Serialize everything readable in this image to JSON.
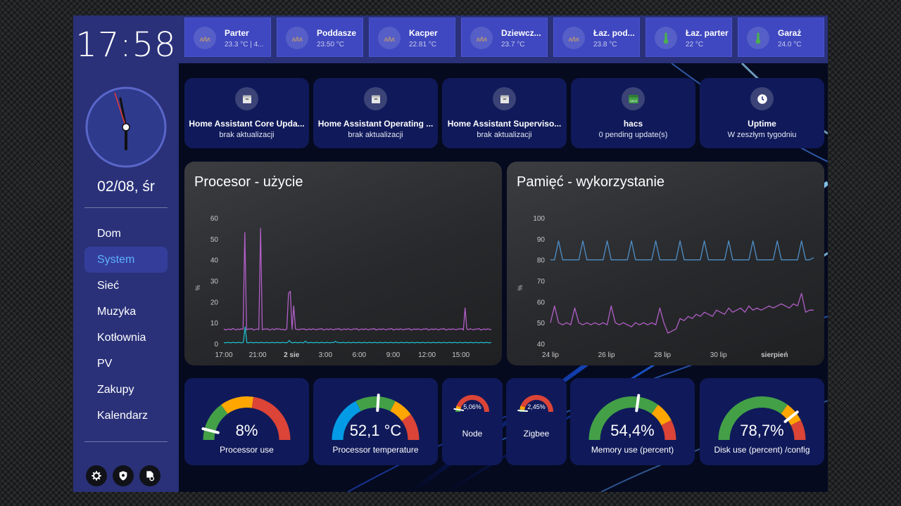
{
  "clock": {
    "time": "17:58",
    "date": "02/08, śr"
  },
  "nav": {
    "items": [
      {
        "label": "Dom",
        "active": false
      },
      {
        "label": "System",
        "active": true
      },
      {
        "label": "Sieć",
        "active": false
      },
      {
        "label": "Muzyka",
        "active": false
      },
      {
        "label": "Kotłownia",
        "active": false
      },
      {
        "label": "PV",
        "active": false
      },
      {
        "label": "Zakupy",
        "active": false
      },
      {
        "label": "Kalendarz",
        "active": false
      }
    ]
  },
  "tools": [
    {
      "icon": "gear-icon"
    },
    {
      "icon": "shield-icon"
    },
    {
      "icon": "file-settings-icon"
    }
  ],
  "rooms": [
    {
      "name": "Parter",
      "temp": "23.3 °C | 4...",
      "icon": "heating-icon"
    },
    {
      "name": "Poddasze",
      "temp": "23.50 °C",
      "icon": "heating-icon"
    },
    {
      "name": "Kacper",
      "temp": "22.81 °C",
      "icon": "heating-icon"
    },
    {
      "name": "Dziewcz...",
      "temp": "23.7 °C",
      "icon": "heating-icon"
    },
    {
      "name": "Łaz. pod...",
      "temp": "23.8 °C",
      "icon": "heating-icon"
    },
    {
      "name": "Łaz. parter",
      "temp": "22 °C",
      "icon": "thermometer-icon"
    },
    {
      "name": "Garaż",
      "temp": "24.0 °C",
      "icon": "thermometer-icon"
    }
  ],
  "updates": [
    {
      "title": "Home Assistant Core Upda...",
      "subtitle": "brak aktualizacji",
      "icon": "package-icon"
    },
    {
      "title": "Home Assistant Operating ...",
      "subtitle": "brak aktualizacji",
      "icon": "package-icon"
    },
    {
      "title": "Home Assistant Superviso...",
      "subtitle": "brak aktualizacji",
      "icon": "package-icon"
    },
    {
      "title": "hacs",
      "subtitle": "0 pending update(s)",
      "icon": "hacs-icon"
    },
    {
      "title": "Uptime",
      "subtitle": "W zeszłym tygodniu",
      "icon": "clock-icon"
    }
  ],
  "colors": {
    "sidebar": "#2a3179",
    "accent": "#5fb0ff",
    "card": "#101a5a",
    "gauge_green": "#43a047",
    "gauge_yellow": "#ffa600",
    "gauge_red": "#db4437",
    "gauge_blue": "#039be5",
    "cpu_series": "#b15fc8",
    "cpu_series_2": "#1fb8c8",
    "mem_series_1": "#4f8fc8",
    "mem_series_2": "#b15fc8"
  },
  "chart_data": [
    {
      "type": "line",
      "title": "Procesor - użycie",
      "ylabel": "%",
      "ylim": [
        0,
        60
      ],
      "yticks": [
        "0",
        "10",
        "20",
        "30",
        "40",
        "50",
        "60"
      ],
      "xticks": [
        "17:00",
        "21:00",
        "2 sie",
        "3:00",
        "6:00",
        "9:00",
        "12:00",
        "15:00"
      ],
      "grid": false,
      "series": [
        {
          "values": [
            7,
            6.5,
            6.8,
            7,
            6.6,
            7.2,
            6.9,
            6.5,
            7,
            6.7,
            7.1,
            6.8,
            53,
            6.6,
            7,
            6.9,
            7.2,
            6.5,
            6.8,
            7,
            6.7,
            55,
            6.6,
            7,
            6.9,
            7.1,
            6.5,
            6.8,
            7,
            6.6,
            7.2,
            6.9,
            7,
            6.7,
            6.8,
            6.5,
            7,
            24,
            25,
            6.8,
            18,
            7,
            6.8,
            6.6,
            7,
            6.9,
            7.1,
            6.5,
            6.8,
            7,
            6.7,
            7.1,
            6.8,
            6.6,
            7,
            6.9,
            7.2,
            6.5,
            6.8,
            7,
            6.7,
            7.1,
            6.8,
            6.6,
            7,
            6.9,
            7.2,
            6.5,
            6.8,
            7,
            6.7,
            7.1,
            6.8,
            6.6,
            7,
            6.9,
            7.2,
            6.5,
            6.8,
            7,
            6.7,
            7.1,
            6.8,
            6.6,
            7,
            6.9,
            7.2,
            6.5,
            6.8,
            7,
            6.7,
            7.1,
            6.8,
            6.6,
            7,
            6.9,
            7.2,
            6.5,
            6.8,
            7,
            6.7,
            7.1,
            6.8,
            6.6,
            7,
            6.9,
            7.2,
            6.5,
            6.8,
            7,
            6.7,
            7.1,
            6.8,
            6.6,
            7,
            6.9,
            7.2,
            6.5,
            6.8,
            7,
            6.7,
            7.1,
            6.8,
            6.6,
            7,
            6.9,
            7.2,
            6.5,
            6.8,
            7,
            6.7,
            7.1,
            6.8,
            6.6,
            7,
            6.9,
            7.2,
            6.5,
            17,
            7,
            6.7,
            7.1,
            6.8,
            6.6,
            7,
            6.9,
            7.2,
            6.5,
            6.8,
            7,
            6.7,
            7.1,
            6.8,
            6.6
          ]
        },
        {
          "values": [
            0.5,
            0.4,
            0.6,
            0.5,
            0.4,
            0.6,
            0.5,
            0.4,
            0.6,
            0.5,
            0.4,
            0.6,
            8,
            0.5,
            0.4,
            0.6,
            0.5,
            0.4,
            0.6,
            0.5,
            0.4,
            0.6,
            0.5,
            0.4,
            0.6,
            0.5,
            0.4,
            0.6,
            0.5,
            0.4,
            0.6,
            0.5,
            0.4,
            0.6,
            0.5,
            0.4,
            0.6,
            1.5,
            0.5,
            0.4,
            0.6,
            0.5,
            0.4,
            0.6,
            0.5,
            0.4,
            1.2,
            0.5,
            0.4,
            0.6,
            0.5,
            0.4,
            0.6,
            0.5,
            0.4,
            0.6,
            0.5,
            0.4,
            0.6,
            0.5,
            0.4,
            0.6,
            0.5,
            1.1,
            0.6,
            0.5,
            0.4,
            0.6,
            0.5,
            0.4,
            0.6,
            0.5,
            0.4,
            0.6,
            0.5,
            0.4,
            0.6,
            0.5,
            0.4,
            0.6,
            0.5,
            0.4,
            0.6,
            0.5,
            0.4,
            0.6,
            0.5,
            0.4,
            0.6,
            0.5,
            0.4,
            0.6,
            0.5,
            0.4,
            0.6,
            0.5,
            0.4,
            0.6,
            0.5,
            0.4,
            0.6,
            0.5,
            0.4,
            0.6,
            0.5,
            0.4,
            0.6,
            0.5,
            0.4,
            0.6,
            0.5,
            0.4,
            0.6,
            0.5,
            0.4,
            0.6,
            0.5,
            0.4,
            0.6,
            0.5,
            0.4,
            0.6,
            0.5,
            0.4,
            0.6,
            0.5,
            0.4,
            0.6,
            0.5,
            0.4,
            0.6,
            0.5,
            0.4,
            0.6,
            0.5,
            0.4,
            0.6,
            0.5,
            0.4,
            0.6,
            0.5,
            0.4,
            0.6,
            0.5,
            0.4,
            0.6,
            0.5,
            0.4,
            0.6,
            0.5,
            0.4,
            0.6
          ]
        }
      ]
    },
    {
      "type": "line",
      "title": "Pamięć - wykorzystanie",
      "ylabel": "%",
      "ylim": [
        40,
        100
      ],
      "yticks": [
        "40",
        "50",
        "60",
        "70",
        "80",
        "90",
        "100"
      ],
      "xticks": [
        "24 lip",
        "26 lip",
        "28 lip",
        "30 lip",
        "sierpień"
      ],
      "grid": false,
      "series": [
        {
          "values": [
            80,
            80,
            89,
            80,
            80,
            80,
            80,
            80,
            89,
            80,
            80,
            80,
            80,
            80,
            89,
            80,
            80,
            80,
            80,
            80,
            89,
            80,
            80,
            80,
            80,
            80,
            89,
            80,
            80,
            80,
            80,
            80,
            89,
            80,
            80,
            80,
            80,
            80,
            89,
            80,
            80,
            80,
            80,
            80,
            89,
            80,
            80,
            80,
            80,
            80,
            89,
            80,
            80,
            80,
            80,
            80,
            89,
            80,
            80,
            80,
            80,
            80,
            89,
            80,
            80,
            81
          ]
        },
        {
          "values": [
            50,
            58,
            50,
            49,
            50,
            49,
            57,
            50,
            49,
            50,
            49,
            50,
            49,
            50,
            49,
            58,
            50,
            49,
            50,
            49,
            48,
            50,
            49,
            50,
            49,
            50,
            49,
            57,
            50,
            45,
            46,
            47,
            52,
            51,
            53,
            52,
            54,
            53,
            55,
            54,
            53,
            56,
            55,
            54,
            57,
            55,
            56,
            57,
            55,
            58,
            56,
            57,
            56,
            57,
            58,
            57,
            58,
            59,
            58,
            57,
            59,
            58,
            64,
            55,
            56,
            56
          ]
        }
      ]
    }
  ],
  "gauges": [
    {
      "value": "8%",
      "label": "Processor use",
      "percent": 8,
      "segments": "load"
    },
    {
      "value": "52,1 °C",
      "label": "Processor temperature",
      "percent": 52.1,
      "segments": "temp"
    },
    {
      "value": "5,06%",
      "label": "Node",
      "percent": 5.06,
      "segments": "small"
    },
    {
      "value": "2,45%",
      "label": "Zigbee",
      "percent": 2.45,
      "segments": "small"
    },
    {
      "value": "54,4%",
      "label": "Memory use (percent)",
      "percent": 54.4,
      "segments": "mem"
    },
    {
      "value": "78,7%",
      "label": "Disk use (percent) /config",
      "percent": 78.7,
      "segments": "mem"
    }
  ]
}
